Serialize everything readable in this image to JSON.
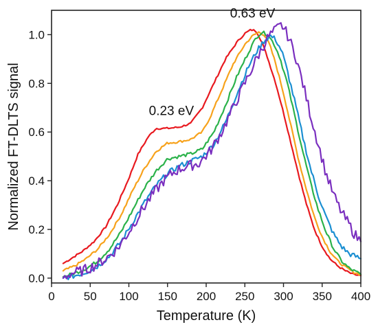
{
  "chart_data": {
    "type": "line",
    "title": "",
    "xlabel": "Temperature (K)",
    "ylabel": "Normalized FT-DLTS signal",
    "xlim": [
      0,
      400
    ],
    "ylim": [
      -0.02,
      1.1
    ],
    "xticks": [
      0,
      50,
      100,
      150,
      200,
      250,
      300,
      350,
      400
    ],
    "yticks": [
      0.0,
      0.2,
      0.4,
      0.6,
      0.8,
      1.0
    ],
    "ytick_labels": [
      "0.0",
      "0.2",
      "0.4",
      "0.6",
      "0.8",
      "1.0"
    ],
    "grid": false,
    "legend": "none",
    "annotations": [
      {
        "text": "0.23 eV",
        "x": 155,
        "y": 0.67
      },
      {
        "text": "0.63 eV",
        "x": 260,
        "y": 1.07
      }
    ],
    "series": [
      {
        "color": "#e8191f",
        "x": [
          15,
          25,
          40,
          55,
          70,
          85,
          100,
          112,
          125,
          135,
          150,
          165,
          180,
          195,
          210,
          225,
          240,
          250,
          258,
          265,
          272,
          280,
          290,
          300,
          310,
          320,
          330,
          340,
          350,
          360,
          370,
          380,
          390,
          400
        ],
        "y": [
          0.06,
          0.08,
          0.11,
          0.15,
          0.21,
          0.3,
          0.41,
          0.51,
          0.58,
          0.615,
          0.615,
          0.62,
          0.635,
          0.7,
          0.8,
          0.9,
          0.97,
          1.005,
          1.02,
          1.015,
          0.97,
          0.9,
          0.8,
          0.68,
          0.55,
          0.42,
          0.3,
          0.2,
          0.13,
          0.08,
          0.05,
          0.03,
          0.015,
          0.01
        ]
      },
      {
        "color": "#f7a21b",
        "x": [
          15,
          30,
          45,
          60,
          75,
          90,
          105,
          120,
          135,
          150,
          165,
          180,
          195,
          205,
          220,
          235,
          250,
          260,
          268,
          275,
          282,
          290,
          300,
          310,
          320,
          330,
          340,
          350,
          360,
          370,
          380,
          390,
          400
        ],
        "y": [
          0.03,
          0.05,
          0.08,
          0.12,
          0.18,
          0.26,
          0.36,
          0.45,
          0.52,
          0.555,
          0.56,
          0.57,
          0.6,
          0.66,
          0.77,
          0.88,
          0.96,
          0.995,
          1.01,
          1.0,
          0.96,
          0.88,
          0.76,
          0.62,
          0.48,
          0.36,
          0.25,
          0.17,
          0.11,
          0.07,
          0.045,
          0.025,
          0.015
        ]
      },
      {
        "color": "#2bb24a",
        "x": [
          15,
          30,
          45,
          60,
          75,
          90,
          105,
          120,
          135,
          150,
          165,
          180,
          195,
          210,
          225,
          240,
          255,
          265,
          272,
          280,
          288,
          295,
          305,
          315,
          325,
          335,
          345,
          355,
          365,
          375,
          385,
          400
        ],
        "y": [
          0.005,
          0.02,
          0.04,
          0.07,
          0.12,
          0.19,
          0.28,
          0.37,
          0.44,
          0.49,
          0.5,
          0.51,
          0.53,
          0.6,
          0.71,
          0.83,
          0.93,
          0.99,
          1.01,
          1.0,
          0.96,
          0.91,
          0.8,
          0.66,
          0.52,
          0.39,
          0.28,
          0.19,
          0.12,
          0.07,
          0.04,
          0.015
        ]
      },
      {
        "color": "#1b8fd2",
        "x": [
          15,
          30,
          45,
          60,
          75,
          90,
          105,
          120,
          135,
          150,
          165,
          180,
          195,
          210,
          225,
          240,
          255,
          265,
          275,
          283,
          290,
          298,
          305,
          315,
          325,
          335,
          345,
          355,
          365,
          375,
          385,
          400
        ],
        "y": [
          0.0,
          0.01,
          0.025,
          0.05,
          0.09,
          0.15,
          0.23,
          0.31,
          0.38,
          0.43,
          0.46,
          0.48,
          0.5,
          0.55,
          0.64,
          0.76,
          0.87,
          0.93,
          0.975,
          0.995,
          0.98,
          0.93,
          0.85,
          0.72,
          0.58,
          0.45,
          0.34,
          0.25,
          0.18,
          0.13,
          0.1,
          0.08
        ]
      },
      {
        "color": "#7a2fbf",
        "x": [
          15,
          25,
          40,
          55,
          70,
          85,
          100,
          115,
          130,
          145,
          160,
          175,
          190,
          205,
          220,
          235,
          250,
          265,
          280,
          290,
          298,
          305,
          315,
          325,
          335,
          345,
          355,
          365,
          375,
          385,
          392,
          400
        ],
        "y": [
          0.0,
          0.02,
          0.03,
          0.05,
          0.08,
          0.12,
          0.19,
          0.27,
          0.34,
          0.4,
          0.44,
          0.46,
          0.47,
          0.52,
          0.6,
          0.7,
          0.8,
          0.9,
          0.99,
          1.02,
          1.04,
          1.0,
          0.92,
          0.8,
          0.67,
          0.55,
          0.43,
          0.34,
          0.27,
          0.22,
          0.18,
          0.15
        ]
      }
    ]
  }
}
